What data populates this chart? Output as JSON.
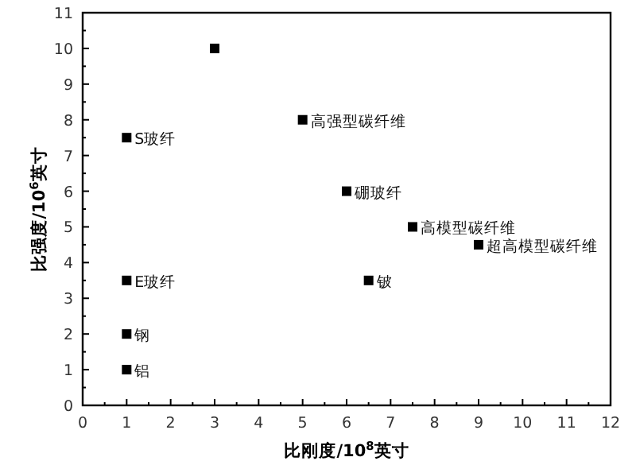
{
  "chart_data": {
    "type": "scatter",
    "xlabel": "比刚度/10$^{8}$英寸",
    "ylabel": "比强度/10$^{6}$英寸",
    "xlim": [
      0,
      12
    ],
    "xticks": [
      0,
      1,
      2,
      3,
      4,
      5,
      6,
      7,
      8,
      9,
      10,
      11,
      12
    ],
    "ylim": [
      0,
      11
    ],
    "yticks": [
      0,
      1,
      2,
      3,
      4,
      5,
      6,
      7,
      8,
      9,
      10,
      11
    ],
    "marker": "square",
    "grid": false,
    "series": [
      {
        "color": "#000000",
        "x": [
          3,
          5,
          1,
          6,
          7.5,
          9,
          1,
          6.5,
          1,
          1
        ],
        "values": [
          10,
          8,
          7.5,
          6,
          5,
          4.5,
          3.5,
          3.5,
          2,
          1
        ]
      }
    ],
    "annotations": [
      {
        "text": "高强型碳纤维",
        "x": 5,
        "y": 8
      },
      {
        "text": "S玻纤",
        "x": 1,
        "y": 7.5
      },
      {
        "text": "硼玻纤",
        "x": 6,
        "y": 6
      },
      {
        "text": "高模型碳纤维",
        "x": 7.5,
        "y": 5
      },
      {
        "text": "超高模型碳纤维",
        "x": 9,
        "y": 4.5
      },
      {
        "text": "E玻纤",
        "x": 1,
        "y": 3.5
      },
      {
        "text": "铍",
        "x": 6.5,
        "y": 3.5
      },
      {
        "text": "钢",
        "x": 1,
        "y": 2
      },
      {
        "text": "铝",
        "x": 1,
        "y": 1
      }
    ]
  }
}
